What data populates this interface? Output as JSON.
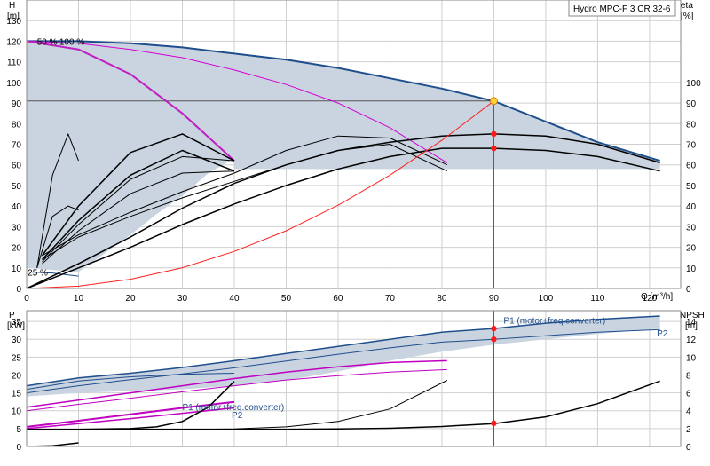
{
  "chart_data": [
    {
      "type": "line",
      "title": "Hydro MPC-F 3 CR 32-6",
      "xlabel": "Q [m³/h]",
      "ylabel_left": [
        "H",
        "[m]"
      ],
      "ylabel_right": [
        "eta",
        "[%]"
      ],
      "xlim": [
        0,
        126
      ],
      "ylim": [
        0,
        140
      ],
      "ylim_right": [
        0,
        140
      ],
      "x_ticks": [
        0,
        10,
        20,
        30,
        40,
        50,
        60,
        70,
        80,
        90,
        100,
        110,
        120
      ],
      "y_ticks": [
        0,
        10,
        20,
        30,
        40,
        50,
        60,
        70,
        80,
        90,
        100,
        110,
        120,
        130
      ],
      "y_ticks_right": [
        0,
        10,
        20,
        30,
        40,
        50,
        60,
        70,
        80,
        90,
        100
      ],
      "grid": true,
      "annotations": [
        {
          "text": "50 %",
          "x": 2,
          "y": 120
        },
        {
          "text": "100 %",
          "x": 6.3,
          "y": 120
        },
        {
          "text": "25 %",
          "x": 0.2,
          "y": 8
        }
      ],
      "duty_point": {
        "Q": 90,
        "H": 91,
        "eta_values": [
          75,
          68
        ]
      },
      "system_curve": {
        "x": [
          0,
          10,
          20,
          30,
          40,
          50,
          60,
          70,
          80,
          90
        ],
        "y": [
          0,
          1.1,
          4.5,
          10.1,
          18,
          28,
          40.4,
          55,
          71.9,
          91
        ]
      },
      "region_max_speed": {
        "x": [
          0,
          10,
          20,
          30,
          40,
          50,
          60,
          70,
          80,
          90,
          100,
          110,
          122
        ],
        "y": [
          120,
          120,
          119,
          117,
          114,
          111,
          107,
          102,
          97,
          91,
          81,
          71,
          62
        ]
      },
      "region_min_edge": {
        "x": [
          0,
          5,
          10,
          15,
          20,
          25,
          30,
          35,
          40
        ],
        "y": [
          10,
          9,
          8,
          17,
          26,
          36,
          45,
          56,
          63
        ]
      },
      "series": [
        {
          "color": "#1f4e8c",
          "width": 2,
          "x": [
            0,
            10,
            20,
            30,
            40,
            50,
            60,
            70,
            80,
            90,
            100,
            110,
            122
          ],
          "y": [
            120,
            120,
            119,
            117,
            114,
            111,
            107,
            102,
            97,
            91,
            81,
            71,
            62
          ]
        },
        {
          "color": "#1f4e8c",
          "width": 1,
          "x": [
            0,
            5,
            10
          ],
          "y": [
            8,
            7.5,
            6
          ]
        },
        {
          "color": "#d400d4",
          "width": 1,
          "x": [
            0,
            10,
            20,
            30,
            40,
            50,
            60,
            70,
            81
          ],
          "y": [
            120,
            119,
            116,
            112,
            106,
            99,
            90,
            78,
            61
          ]
        },
        {
          "color": "#c020c0",
          "width": 2,
          "x": [
            0,
            10,
            20,
            30,
            40
          ],
          "y": [
            120,
            116,
            104,
            85,
            62
          ]
        },
        {
          "color": "#000000",
          "width": 1.5,
          "x": [
            0,
            10,
            20,
            30,
            40,
            50,
            60,
            70,
            80,
            90,
            100,
            110,
            122
          ],
          "y": [
            0,
            10,
            20,
            31,
            41,
            50,
            58,
            64,
            68,
            68,
            67,
            64,
            57
          ]
        },
        {
          "color": "#000000",
          "width": 1.5,
          "x": [
            0,
            10,
            20,
            30,
            40,
            50,
            60,
            70,
            80,
            90,
            100,
            110,
            122
          ],
          "y": [
            0,
            12,
            25,
            39,
            51,
            60,
            67,
            71,
            74,
            75,
            74,
            70,
            61
          ]
        },
        {
          "color": "#000000",
          "width": 1,
          "x": [
            3,
            10,
            20,
            30,
            40,
            50,
            60,
            70,
            81
          ],
          "y": [
            14,
            25,
            35,
            44,
            52,
            60,
            67,
            70,
            57
          ]
        },
        {
          "color": "#000000",
          "width": 1,
          "x": [
            3,
            10,
            20,
            30,
            40,
            50,
            60,
            70,
            81
          ],
          "y": [
            16,
            26,
            37,
            47,
            56,
            67,
            74,
            73,
            60
          ]
        },
        {
          "color": "#000000",
          "width": 1.5,
          "x": [
            3,
            10,
            20,
            30,
            40
          ],
          "y": [
            14,
            33,
            55,
            67,
            57
          ]
        },
        {
          "color": "#000000",
          "width": 1.5,
          "x": [
            3,
            10,
            20,
            30,
            40
          ],
          "y": [
            16,
            40,
            66,
            75,
            62
          ]
        },
        {
          "color": "#000000",
          "width": 1,
          "x": [
            3,
            10,
            20,
            30,
            40
          ],
          "y": [
            12,
            28,
            46,
            56,
            57
          ]
        },
        {
          "color": "#000000",
          "width": 1,
          "x": [
            3,
            10,
            20,
            30,
            40
          ],
          "y": [
            13,
            31,
            53,
            64,
            62
          ]
        },
        {
          "color": "#000000",
          "width": 1,
          "x": [
            2,
            5,
            8,
            10
          ],
          "y": [
            10,
            35,
            40,
            38
          ]
        },
        {
          "color": "#000000",
          "width": 1,
          "x": [
            2,
            5,
            8,
            10
          ],
          "y": [
            10,
            55,
            75,
            62
          ]
        },
        {
          "color": "#ff2020",
          "width": 1,
          "x": [
            0,
            10,
            20,
            30,
            40,
            50,
            60,
            70,
            80,
            90
          ],
          "y": [
            0,
            1.1,
            4.5,
            10.1,
            18,
            28,
            40.4,
            55,
            71.9,
            91
          ]
        }
      ]
    },
    {
      "type": "line",
      "xlabel": "",
      "ylabel_left": [
        "P",
        "[kW]"
      ],
      "ylabel_right": [
        "NPSH",
        "[m]"
      ],
      "xlim": [
        0,
        126
      ],
      "ylim": [
        0,
        38
      ],
      "ylim_right": [
        0,
        15.2
      ],
      "y_ticks": [
        0,
        5,
        10,
        15,
        20,
        25,
        30,
        35
      ],
      "y_ticks_right": [
        0,
        2,
        4,
        6,
        8,
        10,
        12,
        14
      ],
      "grid": true,
      "annotations": [
        {
          "text": "P1 (motor+freq.converter)",
          "x": 111.5,
          "y": 35.4,
          "color": "#1f4e8c"
        },
        {
          "text": "P2",
          "x": 123.5,
          "y": 31.8,
          "color": "#1f4e8c"
        },
        {
          "text": "P1 (motor+freq.converter)",
          "x": 30,
          "y": 11.2,
          "color": "#1f4e8c"
        },
        {
          "text": "P2",
          "x": 39.5,
          "y": 8.9,
          "color": "#1f4e8c"
        }
      ],
      "duty_point": {
        "Q": 90,
        "P1": 33,
        "P2": 30,
        "NPSH": 2.6
      },
      "region_top": {
        "x": [
          0,
          10,
          20,
          30,
          40,
          50,
          60,
          70,
          80,
          90,
          100,
          110,
          122
        ],
        "y": [
          17,
          19.2,
          20.5,
          22.1,
          24,
          26,
          28,
          30,
          32,
          33,
          34.5,
          35.6,
          36.5
        ]
      },
      "region_bottom": {
        "x": [
          0,
          10,
          20,
          30,
          40,
          50,
          60,
          70,
          80,
          90,
          100,
          110,
          122
        ],
        "y": [
          14,
          15,
          15.5,
          16,
          17,
          18.5,
          21,
          24,
          26.5,
          28.5,
          30,
          31.5,
          33
        ]
      },
      "series": [
        {
          "color": "#1f4e8c",
          "width": 1.5,
          "x": [
            0,
            10,
            20,
            30,
            40,
            50,
            60,
            70,
            80,
            90,
            100,
            110,
            122
          ],
          "y": [
            17,
            19.2,
            20.5,
            22.1,
            24,
            26,
            28,
            30,
            32,
            33,
            34.5,
            35.6,
            36.5
          ]
        },
        {
          "color": "#1f4e8c",
          "width": 1,
          "x": [
            0,
            10,
            20,
            30,
            40,
            50,
            60,
            70,
            80,
            90,
            100,
            110,
            122
          ],
          "y": [
            15,
            17,
            18.7,
            20.3,
            22,
            23.9,
            25.8,
            27.6,
            29.2,
            30,
            31,
            32,
            32.7
          ]
        },
        {
          "color": "#1f4e8c",
          "width": 1,
          "x": [
            0,
            10,
            20,
            30,
            40
          ],
          "y": [
            16,
            18.3,
            19.5,
            20.2,
            20.5
          ]
        },
        {
          "color": "#c000c0",
          "width": 1.5,
          "x": [
            0,
            10,
            20,
            30,
            40,
            50,
            60,
            70,
            81
          ],
          "y": [
            11,
            13,
            15,
            17,
            19,
            20.8,
            22.3,
            23.5,
            24
          ]
        },
        {
          "color": "#c000c0",
          "width": 1,
          "x": [
            0,
            10,
            20,
            30,
            40,
            50,
            60,
            70,
            81
          ],
          "y": [
            10,
            11.8,
            13.5,
            15.3,
            17,
            18.6,
            19.8,
            20.8,
            21.5
          ]
        },
        {
          "color": "#c000c0",
          "width": 2,
          "x": [
            0,
            10,
            20,
            30,
            40
          ],
          "y": [
            5.5,
            7.2,
            9,
            10.8,
            12.5
          ]
        },
        {
          "color": "#c000c0",
          "width": 1.5,
          "x": [
            0,
            10,
            20,
            30,
            40
          ],
          "y": [
            5,
            6.4,
            7.8,
            9.3,
            10.8
          ]
        },
        {
          "color": "#000000",
          "width": 1.5,
          "x": [
            0,
            10,
            20,
            25,
            30,
            35,
            40
          ],
          "y": [
            4.8,
            4.8,
            5,
            5.5,
            7,
            11,
            18.2
          ]
        },
        {
          "color": "#000000",
          "width": 1,
          "x": [
            0,
            10,
            20,
            30,
            40,
            50,
            60,
            70,
            81
          ],
          "y": [
            4.8,
            4.8,
            4.8,
            4.8,
            4.9,
            5.5,
            7,
            10.5,
            18.5
          ]
        },
        {
          "color": "#000000",
          "width": 1.5,
          "x": [
            0,
            10,
            20,
            30,
            40,
            50,
            60,
            70,
            80,
            90,
            100,
            110,
            122
          ],
          "y": [
            4.8,
            4.8,
            4.8,
            4.8,
            4.8,
            4.8,
            4.9,
            5.1,
            5.6,
            6.4,
            8.3,
            12,
            18.3
          ]
        },
        {
          "color": "#000000",
          "width": 1.5,
          "x": [
            0,
            5,
            10
          ],
          "y": [
            0,
            0.2,
            1
          ]
        }
      ]
    }
  ]
}
